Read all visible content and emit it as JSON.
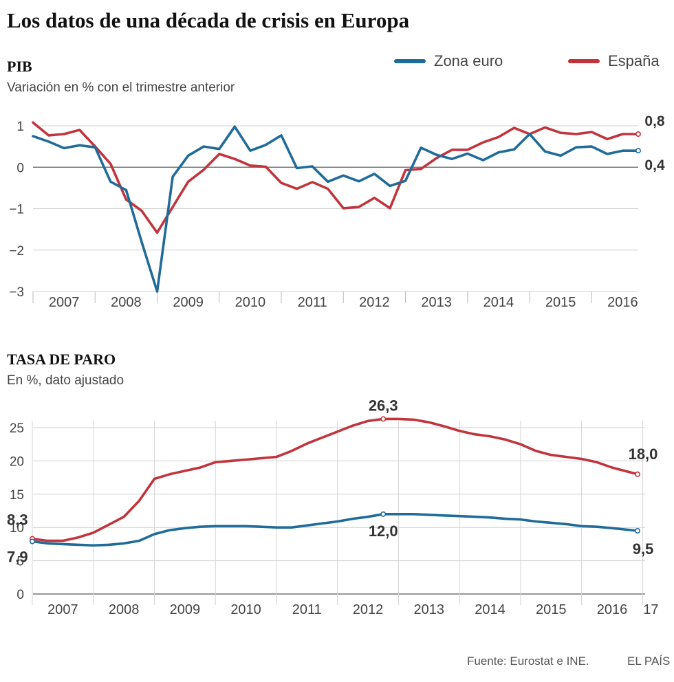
{
  "title": "Los datos de una década de crisis en Europa",
  "legend": [
    {
      "label": "Zona euro",
      "color": "#1f6b9a"
    },
    {
      "label": "España",
      "color": "#c1343c"
    }
  ],
  "footer": {
    "source": "Fuente: Eurostat e INE.",
    "brand": "EL PAÍS"
  },
  "chart_data": [
    {
      "type": "line",
      "title": "PIB",
      "subtitle": "Variación en % con el trimestre anterior",
      "ylim": [
        -3,
        1
      ],
      "yticks": [
        1,
        0,
        -1,
        -2,
        -3
      ],
      "ytick_labels": [
        "1",
        "0",
        "−1",
        "−2",
        "−3"
      ],
      "xlim": [
        2007,
        2016.75
      ],
      "year_labels": [
        "2007",
        "2008",
        "2009",
        "2010",
        "2011",
        "2012",
        "2013",
        "2014",
        "2015",
        "2016"
      ],
      "series": [
        {
          "name": "Zona euro",
          "color": "#1f6b9a",
          "x": [
            2007,
            2007.25,
            2007.5,
            2007.75,
            2008,
            2008.25,
            2008.5,
            2008.75,
            2009,
            2009.25,
            2009.5,
            2009.75,
            2010,
            2010.25,
            2010.5,
            2010.75,
            2011,
            2011.25,
            2011.5,
            2011.75,
            2012,
            2012.25,
            2012.5,
            2012.75,
            2013,
            2013.25,
            2013.5,
            2013.75,
            2014,
            2014.25,
            2014.5,
            2014.75,
            2015,
            2015.25,
            2015.5,
            2015.75,
            2016,
            2016.25,
            2016.5,
            2016.75
          ],
          "values": [
            0.75,
            0.62,
            0.46,
            0.53,
            0.48,
            -0.35,
            -0.55,
            -1.8,
            -3.0,
            -0.23,
            0.28,
            0.5,
            0.44,
            0.98,
            0.4,
            0.54,
            0.77,
            -0.02,
            0.02,
            -0.35,
            -0.2,
            -0.34,
            -0.16,
            -0.45,
            -0.33,
            0.47,
            0.3,
            0.2,
            0.33,
            0.17,
            0.36,
            0.43,
            0.8,
            0.38,
            0.28,
            0.48,
            0.5,
            0.32,
            0.4,
            0.4
          ],
          "end_label": "0,4"
        },
        {
          "name": "España",
          "color": "#c1343c",
          "x": [
            2007,
            2007.25,
            2007.5,
            2007.75,
            2008,
            2008.25,
            2008.5,
            2008.75,
            2009,
            2009.25,
            2009.5,
            2009.75,
            2010,
            2010.25,
            2010.5,
            2010.75,
            2011,
            2011.25,
            2011.5,
            2011.75,
            2012,
            2012.25,
            2012.5,
            2012.75,
            2013,
            2013.25,
            2013.5,
            2013.75,
            2014,
            2014.25,
            2014.5,
            2014.75,
            2015,
            2015.25,
            2015.5,
            2015.75,
            2016,
            2016.25,
            2016.5,
            2016.75
          ],
          "values": [
            1.08,
            0.77,
            0.8,
            0.9,
            0.5,
            0.08,
            -0.78,
            -1.05,
            -1.58,
            -0.96,
            -0.35,
            -0.06,
            0.32,
            0.2,
            0.04,
            0.01,
            -0.38,
            -0.52,
            -0.36,
            -0.52,
            -0.99,
            -0.96,
            -0.74,
            -0.99,
            -0.07,
            -0.04,
            0.22,
            0.42,
            0.42,
            0.6,
            0.73,
            0.95,
            0.8,
            0.96,
            0.83,
            0.8,
            0.85,
            0.68,
            0.8,
            0.8
          ],
          "end_label": "0,8"
        }
      ]
    },
    {
      "type": "line",
      "title": "TASA DE PARO",
      "subtitle": "En %, dato ajustado",
      "ylim": [
        0,
        25
      ],
      "yticks": [
        25,
        20,
        15,
        10,
        5,
        0
      ],
      "ytick_labels": [
        "25",
        "20",
        "15",
        "10",
        "5",
        "0"
      ],
      "xlim": [
        2007,
        2016.917
      ],
      "year_labels": [
        "2007",
        "2008",
        "2009",
        "2010",
        "2011",
        "2012",
        "2013",
        "2014",
        "2015",
        "2016",
        "17"
      ],
      "series": [
        {
          "name": "Zona euro",
          "color": "#1f6b9a",
          "x": [
            2007,
            2007.25,
            2007.5,
            2007.75,
            2008,
            2008.25,
            2008.5,
            2008.75,
            2009,
            2009.25,
            2009.5,
            2009.75,
            2010,
            2010.25,
            2010.5,
            2010.75,
            2011,
            2011.25,
            2011.5,
            2011.75,
            2012,
            2012.25,
            2012.5,
            2012.75,
            2013,
            2013.25,
            2013.5,
            2013.75,
            2014,
            2014.25,
            2014.5,
            2014.75,
            2015,
            2015.25,
            2015.5,
            2015.75,
            2016,
            2016.25,
            2016.5,
            2016.917
          ],
          "values": [
            7.9,
            7.6,
            7.5,
            7.4,
            7.3,
            7.4,
            7.6,
            8.0,
            9.0,
            9.6,
            9.9,
            10.1,
            10.2,
            10.2,
            10.2,
            10.1,
            10.0,
            10.0,
            10.3,
            10.6,
            10.9,
            11.3,
            11.6,
            12.0,
            12.0,
            12.0,
            11.9,
            11.8,
            11.7,
            11.6,
            11.5,
            11.3,
            11.2,
            10.9,
            10.7,
            10.5,
            10.2,
            10.1,
            9.9,
            9.5
          ],
          "start_label": "7,9",
          "peak_index": 23,
          "peak_label": "12,0",
          "end_label": "9,5"
        },
        {
          "name": "España",
          "color": "#c1343c",
          "x": [
            2007,
            2007.25,
            2007.5,
            2007.75,
            2008,
            2008.25,
            2008.5,
            2008.75,
            2009,
            2009.25,
            2009.5,
            2009.75,
            2010,
            2010.25,
            2010.5,
            2010.75,
            2011,
            2011.25,
            2011.5,
            2011.75,
            2012,
            2012.25,
            2012.5,
            2012.75,
            2013,
            2013.25,
            2013.5,
            2013.75,
            2014,
            2014.25,
            2014.5,
            2014.75,
            2015,
            2015.25,
            2015.5,
            2015.75,
            2016,
            2016.25,
            2016.5,
            2016.917
          ],
          "values": [
            8.3,
            8.0,
            8.0,
            8.5,
            9.2,
            10.4,
            11.6,
            14.0,
            17.3,
            18.0,
            18.5,
            19.0,
            19.8,
            20.0,
            20.2,
            20.4,
            20.6,
            21.5,
            22.6,
            23.5,
            24.4,
            25.3,
            26.0,
            26.3,
            26.3,
            26.2,
            25.8,
            25.2,
            24.5,
            24.0,
            23.7,
            23.2,
            22.5,
            21.5,
            20.9,
            20.6,
            20.3,
            19.8,
            19.0,
            18.0
          ],
          "start_label": "8,3",
          "peak_index": 23,
          "peak_label": "26,3",
          "end_label": "18,0"
        }
      ]
    }
  ]
}
